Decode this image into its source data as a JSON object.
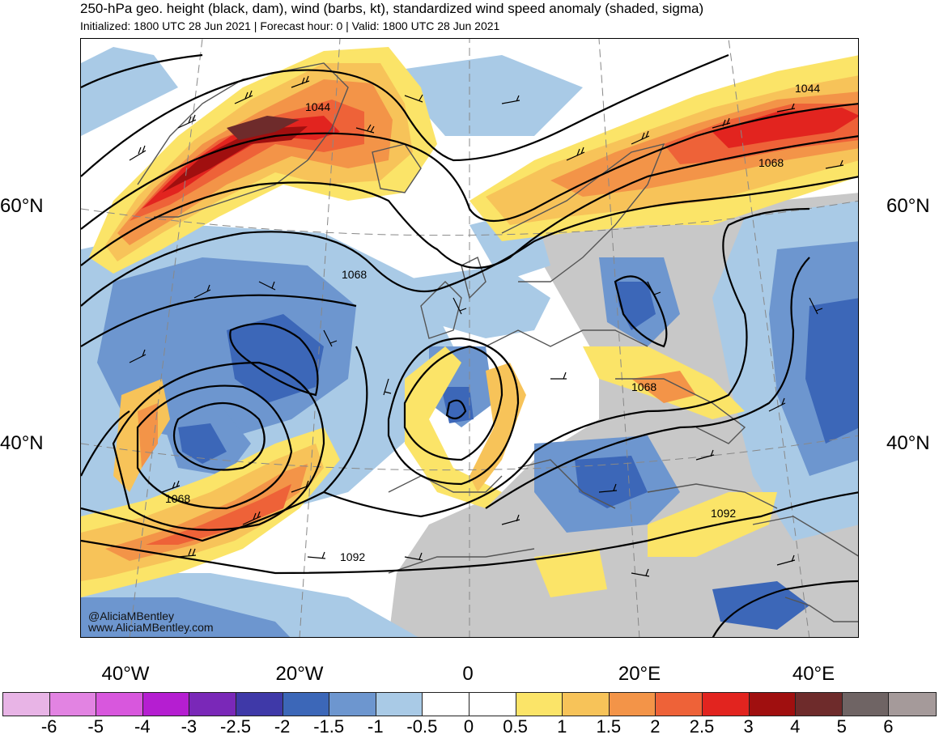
{
  "title": "250-hPa geo. height (black, dam), wind (barbs, kt), standardized wind speed anomaly (shaded, sigma)",
  "subtitle": "Initialized: 1800 UTC 28 Jun 2021 | Forecast hour: 0 | Valid: 1800 UTC 28 Jun 2021",
  "credits": [
    "@AliciaMBentley",
    "www.AliciaMBentley.com"
  ],
  "latitude_labels": [
    "60°N",
    "40°N"
  ],
  "longitude_labels": [
    "40°W",
    "20°W",
    "0",
    "20°E",
    "40°E"
  ],
  "contour_labels": [
    "1044",
    "1044",
    "1068",
    "1068",
    "1068",
    "1068",
    "1092",
    "1092"
  ],
  "colorbar": {
    "colors": [
      "#e8b4e6",
      "#e283e2",
      "#d857dd",
      "#b51ed1",
      "#7a28b8",
      "#3f39a8",
      "#3c67b8",
      "#6d96cf",
      "#a9cae6",
      "#ffffff",
      "#ffffff",
      "#fbe468",
      "#f7c359",
      "#f39448",
      "#ee6238",
      "#e2241f",
      "#a00f0f",
      "#6e2b2b",
      "#6f6464",
      "#a59a9a"
    ],
    "labels": [
      "-6",
      "-5",
      "-4",
      "-3",
      "-2.5",
      "-2",
      "-1.5",
      "-1",
      "-0.5",
      "0",
      "0.5",
      "1",
      "1.5",
      "2",
      "2.5",
      "3",
      "4",
      "5",
      "6"
    ]
  },
  "map_colors": {
    "land_gray": "#c8c8c8",
    "contour": "#000000",
    "coastline": "#555555",
    "gridline": "#888888"
  }
}
